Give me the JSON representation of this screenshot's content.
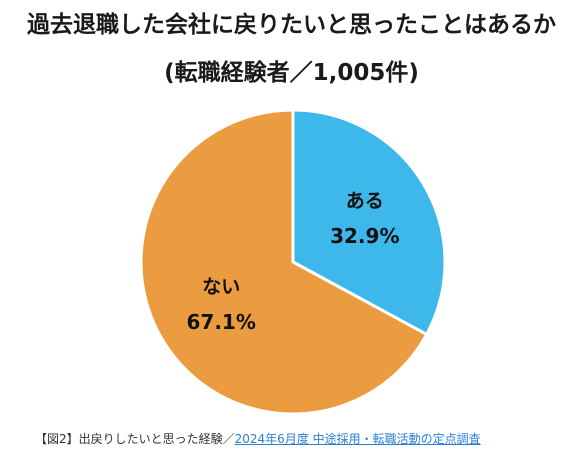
{
  "chart_data": {
    "type": "pie",
    "title": "過去退職した会社に戻りたいと思ったことはあるか",
    "subtitle": "(転職経験者／1,005件)",
    "slices": [
      {
        "label": "ある",
        "value": 32.9,
        "value_label": "32.9%",
        "color": "#3eb7ea"
      },
      {
        "label": "ない",
        "value": 67.1,
        "value_label": "67.1%",
        "color": "#ec9c40"
      }
    ],
    "start_angle": "12 o'clock",
    "direction": "clockwise",
    "legend": "none"
  },
  "caption": {
    "prefix": "【図2】出戻りしたいと思った経験／",
    "link_text": "2024年6月度 中途採用・転職活動の定点調査"
  }
}
